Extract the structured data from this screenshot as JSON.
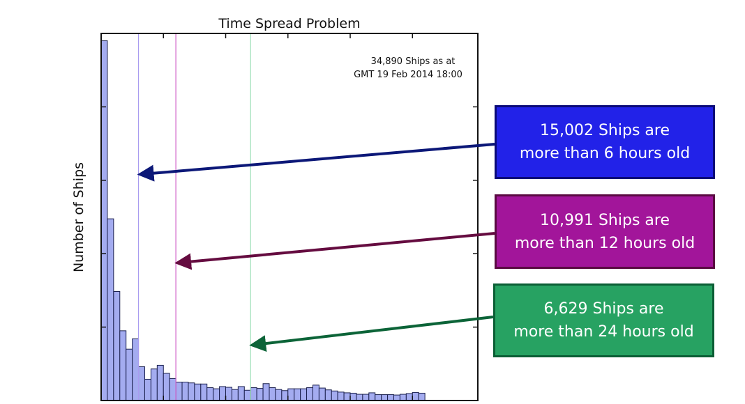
{
  "chart_data": {
    "type": "bar",
    "title": "Time Spread Problem",
    "xlabel": "",
    "ylabel": "Number of Ships",
    "x_units": "hours old (1-hour bins)",
    "y_units": "relative height (% of y-axis range; axis has no tick labels)",
    "xlim": [
      0,
      60.5
    ],
    "ylim": [
      0,
      100
    ],
    "x_ticks": [
      10,
      20,
      30,
      40,
      50
    ],
    "y_ticks": [
      20,
      40,
      60,
      80
    ],
    "grid": false,
    "bin_width": 1,
    "values": [
      98,
      49.5,
      29.7,
      19,
      14,
      16.8,
      9.2,
      5.8,
      8.6,
      9.6,
      7.4,
      6,
      5,
      5,
      4.8,
      4.5,
      4.5,
      3.5,
      3.2,
      3.8,
      3.6,
      3,
      3.8,
      2.8,
      3.5,
      3.3,
      4.6,
      3.5,
      3.0,
      2.7,
      3.2,
      3.2,
      3.2,
      3.5,
      4.2,
      3.4,
      2.9,
      2.6,
      2.3,
      2.1,
      2.0,
      1.7,
      1.7,
      2.1,
      1.6,
      1.6,
      1.6,
      1.5,
      1.7,
      1.9,
      2.2,
      2.0
    ],
    "bar_color": "#a4acf0",
    "bar_edge": "#1a1f4d",
    "annotation": {
      "line1": "34,890 Ships as at",
      "line2": "GMT 19 Feb 2014 18:00"
    },
    "markers": [
      {
        "x": 6,
        "line_color": "#a99cf0",
        "arrow_color": "#0c1878"
      },
      {
        "x": 12,
        "line_color": "#d060c8",
        "arrow_color": "#650c40"
      },
      {
        "x": 24,
        "line_color": "#9ee0b8",
        "arrow_color": "#0c6438"
      }
    ]
  },
  "callouts": [
    {
      "line1": "15,002 Ships are",
      "line2": "more than 6 hours old",
      "fill": "#2222e8",
      "border": "#0a0a78"
    },
    {
      "line1": "10,991 Ships are",
      "line2": "more than 12 hours old",
      "fill": "#a2159a",
      "border": "#5a0a42"
    },
    {
      "line1": "6,629 Ships are",
      "line2": "more than 24 hours old",
      "fill": "#27a262",
      "border": "#0b5e35"
    }
  ]
}
